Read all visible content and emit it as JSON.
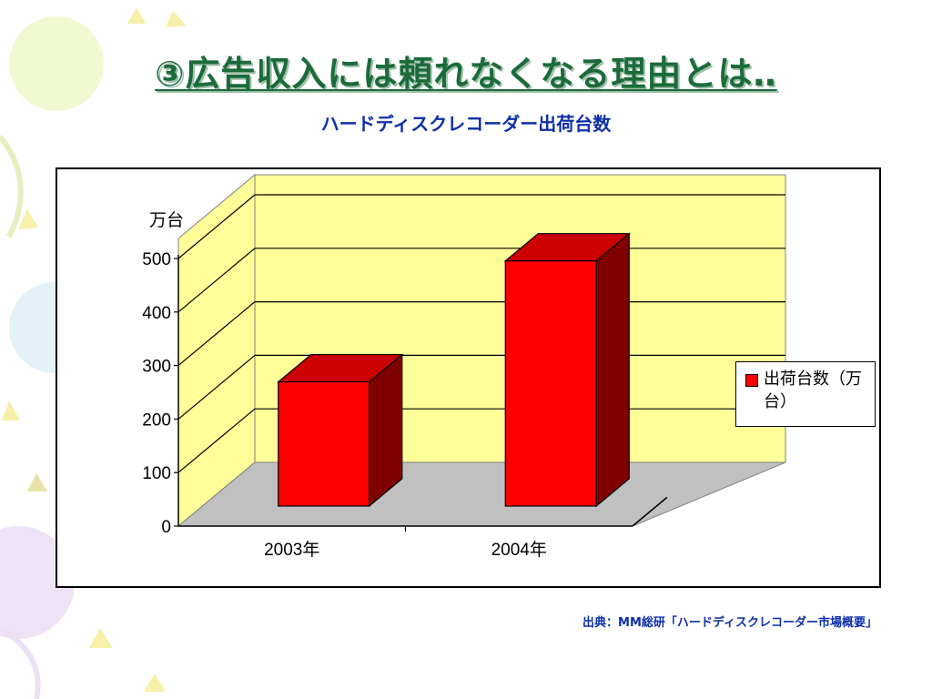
{
  "slide": {
    "title": "③広告収入には頼れなくなる理由とは‥",
    "subtitle": "ハードディスクレコーダー出荷台数",
    "source": "出典：MM総研「ハードディスクレコーダー市場概要」"
  },
  "colors": {
    "title": "#1b6b3a",
    "subtitle": "#0e2fa8",
    "wall": "#ffff99",
    "floor": "#c0c0c0",
    "bar_front": "#ff0000",
    "bar_top": "#cc0000",
    "bar_side": "#800000"
  },
  "chart_data": {
    "type": "bar",
    "unit_label": "万台",
    "categories": [
      "2003年",
      "2004年"
    ],
    "series": [
      {
        "name": "出荷台数（万台）",
        "values": [
          232,
          458
        ]
      }
    ],
    "ylim": [
      0,
      500
    ],
    "y_ticks": [
      "0",
      "100",
      "200",
      "300",
      "400",
      "500"
    ],
    "grid": true,
    "legend_position": "right",
    "three_d": true
  }
}
